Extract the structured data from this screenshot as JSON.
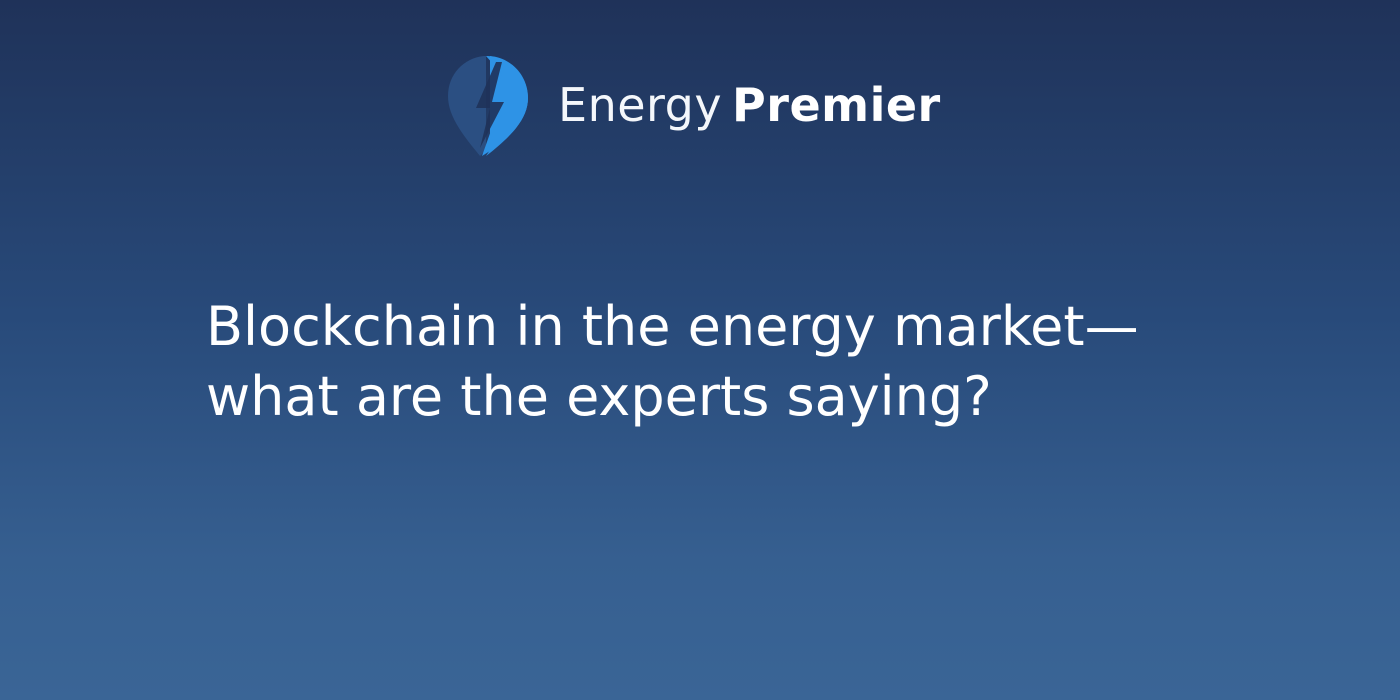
{
  "brand": {
    "word_light": "Energy",
    "word_bold": "Premier",
    "icon": "lightning-pin-icon",
    "colors": {
      "pin_dark": "#2b4f82",
      "pin_light": "#2e93e6",
      "text": "#ffffff"
    }
  },
  "headline": {
    "line1": "Blockchain in the energy market—",
    "line2": "what are the experts saying?"
  },
  "background": {
    "gradient_top": "#1f3259",
    "gradient_bottom": "#3a6596"
  }
}
